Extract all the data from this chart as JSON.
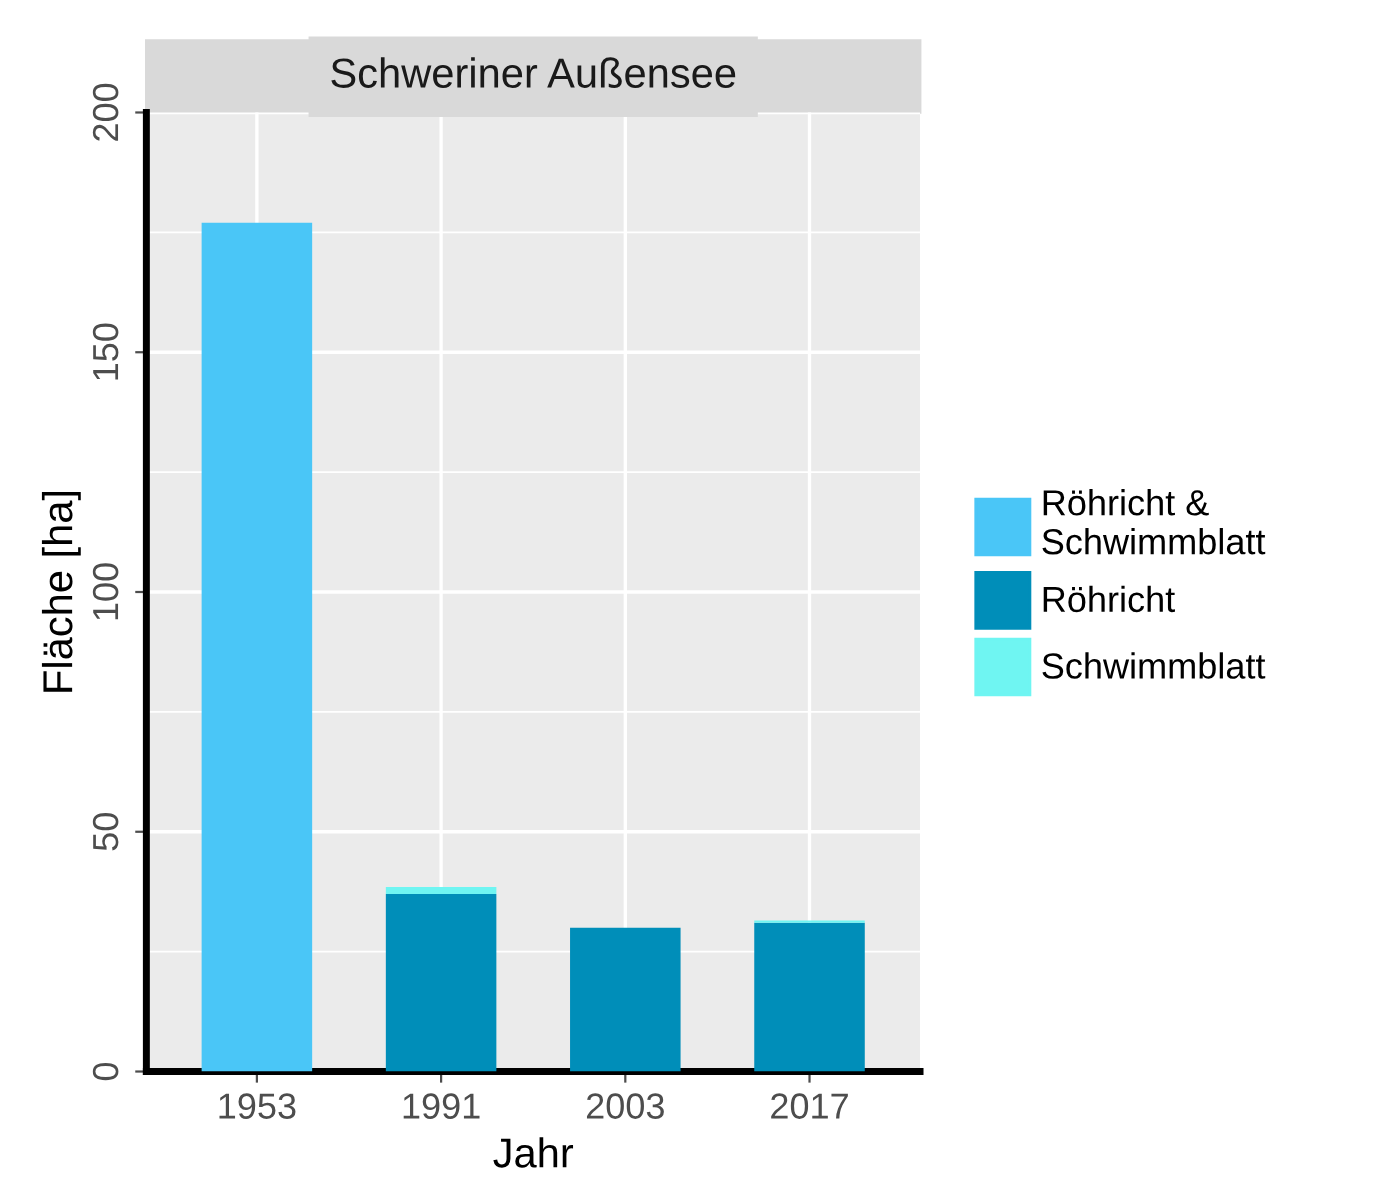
{
  "chart_data": {
    "type": "bar",
    "title": "Schweriner Außensee",
    "xlabel": "Jahr",
    "ylabel": "Fläche [ha]",
    "categories": [
      "1953",
      "1991",
      "2003",
      "2017"
    ],
    "series": [
      {
        "name": "Röhricht & Schwimmblatt",
        "color": "#4ac6f7",
        "values": [
          177,
          null,
          null,
          null
        ]
      },
      {
        "name": "Röhricht",
        "color": "#008eb9",
        "values": [
          null,
          37,
          30,
          31
        ]
      },
      {
        "name": "Schwimmblatt",
        "color": "#6ff5f2",
        "values": [
          null,
          1.5,
          null,
          0.5
        ]
      }
    ],
    "stacked": true,
    "ylim": [
      0,
      200
    ],
    "yticks": [
      0,
      50,
      100,
      150,
      200
    ],
    "grid": true,
    "legend": "right"
  }
}
